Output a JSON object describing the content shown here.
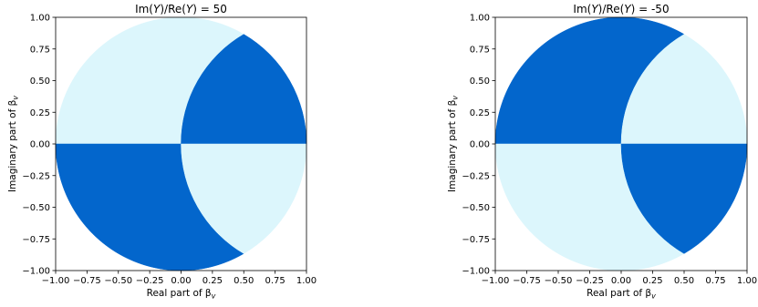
{
  "colors": {
    "dark_region": "#0366cc",
    "light_region": "#dcf6fc",
    "axis": "#000000"
  },
  "chart_data": [
    {
      "type": "area",
      "title_prefix": "Im(",
      "title_y1": "Y",
      "title_mid": ")/Re(",
      "title_y2": "Y",
      "title_suffix": ") = 50",
      "xlabel": "Real part of β",
      "xlabel_sub": "v",
      "ylabel": "Imaginary part of β",
      "ylabel_sub": "v",
      "xlim": [
        -1.0,
        1.0
      ],
      "ylim": [
        -1.0,
        1.0
      ],
      "ticks": [
        -1.0,
        -0.75,
        -0.5,
        -0.25,
        0.0,
        0.25,
        0.5,
        0.75,
        1.0
      ],
      "x_tick_labels": [
        "−1.00",
        "−0.75",
        "−0.50",
        "−0.25",
        "0.00",
        "0.25",
        "0.50",
        "0.75",
        "1.00"
      ],
      "y_tick_labels": [
        "−1.00",
        "−0.75",
        "−0.50",
        "−0.25",
        "0.00",
        "0.25",
        "0.50",
        "0.75",
        "1.00"
      ],
      "grid": false,
      "ratio_sign": 1
    },
    {
      "type": "area",
      "title_prefix": "Im(",
      "title_y1": "Y",
      "title_mid": ")/Re(",
      "title_y2": "Y",
      "title_suffix": ") = -50",
      "xlabel": "Real part of β",
      "xlabel_sub": "v",
      "ylabel": "Imaginary part of β",
      "ylabel_sub": "v",
      "xlim": [
        -1.0,
        1.0
      ],
      "ylim": [
        -1.0,
        1.0
      ],
      "ticks": [
        -1.0,
        -0.75,
        -0.5,
        -0.25,
        0.0,
        0.25,
        0.5,
        0.75,
        1.0
      ],
      "x_tick_labels": [
        "−1.00",
        "−0.75",
        "−0.50",
        "−0.25",
        "0.00",
        "0.25",
        "0.50",
        "0.75",
        "1.00"
      ],
      "y_tick_labels": [
        "−1.00",
        "−0.75",
        "−0.50",
        "−0.25",
        "0.00",
        "0.25",
        "0.50",
        "0.75",
        "1.00"
      ],
      "grid": false,
      "ratio_sign": -1
    }
  ]
}
